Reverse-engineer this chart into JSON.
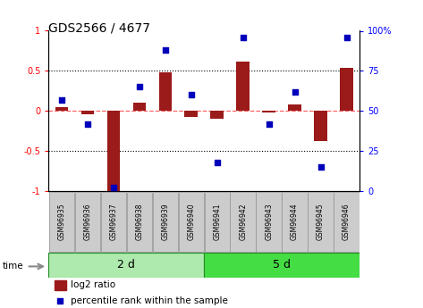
{
  "title": "GDS2566 / 4677",
  "samples": [
    "GSM96935",
    "GSM96936",
    "GSM96937",
    "GSM96938",
    "GSM96939",
    "GSM96940",
    "GSM96941",
    "GSM96942",
    "GSM96943",
    "GSM96944",
    "GSM96945",
    "GSM96946"
  ],
  "log2_ratio": [
    0.05,
    -0.04,
    -1.0,
    0.1,
    0.48,
    -0.08,
    -0.1,
    0.62,
    -0.02,
    0.08,
    -0.38,
    0.54
  ],
  "percentile_rank": [
    57,
    42,
    2,
    65,
    88,
    60,
    18,
    96,
    42,
    62,
    15,
    96
  ],
  "groups": [
    {
      "label": "2 d",
      "start": 0,
      "end": 6,
      "color": "#AEEAAE"
    },
    {
      "label": "5 d",
      "start": 6,
      "end": 12,
      "color": "#44DD44"
    }
  ],
  "bar_color": "#9B1A1A",
  "scatter_color": "#0000BB",
  "bg_color": "#ffffff",
  "ylim_left": [
    -1,
    1
  ],
  "ylim_right": [
    0,
    100
  ],
  "yticks_left": [
    -1,
    -0.5,
    0,
    0.5,
    1
  ],
  "yticks_right": [
    0,
    25,
    50,
    75,
    100
  ],
  "ytick_labels_left": [
    "-1",
    "-0.5",
    "0",
    "0.5",
    "1"
  ],
  "ytick_labels_right": [
    "0",
    "25",
    "50",
    "75",
    "100%"
  ],
  "hline_0_color": "#FF6666",
  "hline_0_style": "--",
  "hline_dotted_color": "black",
  "hline_dotted_style": ":",
  "legend_label_bar": "log2 ratio",
  "legend_label_scatter": "percentile rank within the sample",
  "time_label": "time",
  "bar_width": 0.5,
  "sample_box_color": "#CCCCCC",
  "sample_box_edge": "#999999",
  "title_fontsize": 10,
  "tick_fontsize": 7,
  "sample_fontsize": 5.5,
  "group_fontsize": 9,
  "legend_fontsize": 7.5
}
